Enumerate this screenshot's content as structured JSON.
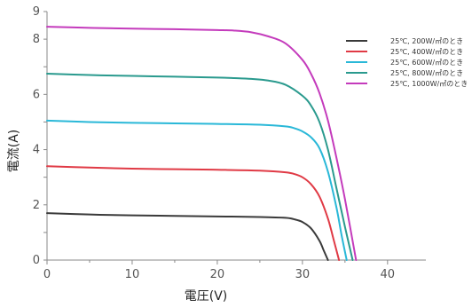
{
  "chart_data": {
    "type": "line",
    "xlabel": "電圧(V)",
    "ylabel": "電流(A)",
    "xlim": [
      0,
      44.5
    ],
    "ylim": [
      0,
      9
    ],
    "xticks": [
      0,
      10,
      20,
      30,
      40
    ],
    "yticks": [
      0,
      2,
      4,
      6,
      8,
      9
    ],
    "grid": false,
    "legend_position": "top-right",
    "series": [
      {
        "name": "25℃, 200W/㎡のとき",
        "color": "#3a3a3a",
        "x": [
          0,
          5,
          10,
          15,
          20,
          25,
          28,
          29,
          30,
          31,
          32,
          32.5,
          33.0
        ],
        "y": [
          1.7,
          1.65,
          1.62,
          1.6,
          1.58,
          1.56,
          1.53,
          1.48,
          1.38,
          1.15,
          0.7,
          0.35,
          0
        ]
      },
      {
        "name": "25℃, 400W/㎡のとき",
        "color": "#e03a45",
        "x": [
          0,
          5,
          10,
          15,
          20,
          25,
          28,
          29,
          30,
          31,
          32,
          33,
          33.7,
          34.3
        ],
        "y": [
          3.4,
          3.35,
          3.31,
          3.29,
          3.27,
          3.24,
          3.18,
          3.12,
          3.0,
          2.75,
          2.3,
          1.5,
          0.7,
          0
        ]
      },
      {
        "name": "25℃, 600W/㎡のとき",
        "color": "#2ab8d8",
        "x": [
          0,
          5,
          10,
          15,
          20,
          25,
          28,
          29,
          30,
          31,
          32,
          33,
          34,
          34.6,
          35.2
        ],
        "y": [
          5.05,
          5.0,
          4.97,
          4.95,
          4.93,
          4.9,
          4.84,
          4.78,
          4.66,
          4.45,
          4.05,
          3.2,
          1.9,
          0.9,
          0
        ]
      },
      {
        "name": "25℃, 800W/㎡のとき",
        "color": "#2a9a8e",
        "x": [
          0,
          5,
          10,
          15,
          20,
          22,
          24,
          26,
          28,
          30,
          31,
          32,
          33,
          34,
          35,
          35.9
        ],
        "y": [
          6.75,
          6.7,
          6.67,
          6.64,
          6.61,
          6.59,
          6.56,
          6.5,
          6.35,
          5.95,
          5.6,
          5.0,
          4.0,
          2.6,
          1.2,
          0
        ]
      },
      {
        "name": "25℃, 1000W/㎡のとき",
        "color": "#c43bbc",
        "x": [
          0,
          5,
          10,
          15,
          20,
          22,
          24,
          26,
          28,
          30,
          31,
          32,
          33,
          34,
          35,
          36.3
        ],
        "y": [
          8.45,
          8.41,
          8.38,
          8.36,
          8.33,
          8.31,
          8.25,
          8.1,
          7.85,
          7.25,
          6.75,
          6.05,
          5.05,
          3.7,
          2.2,
          0
        ]
      }
    ]
  }
}
